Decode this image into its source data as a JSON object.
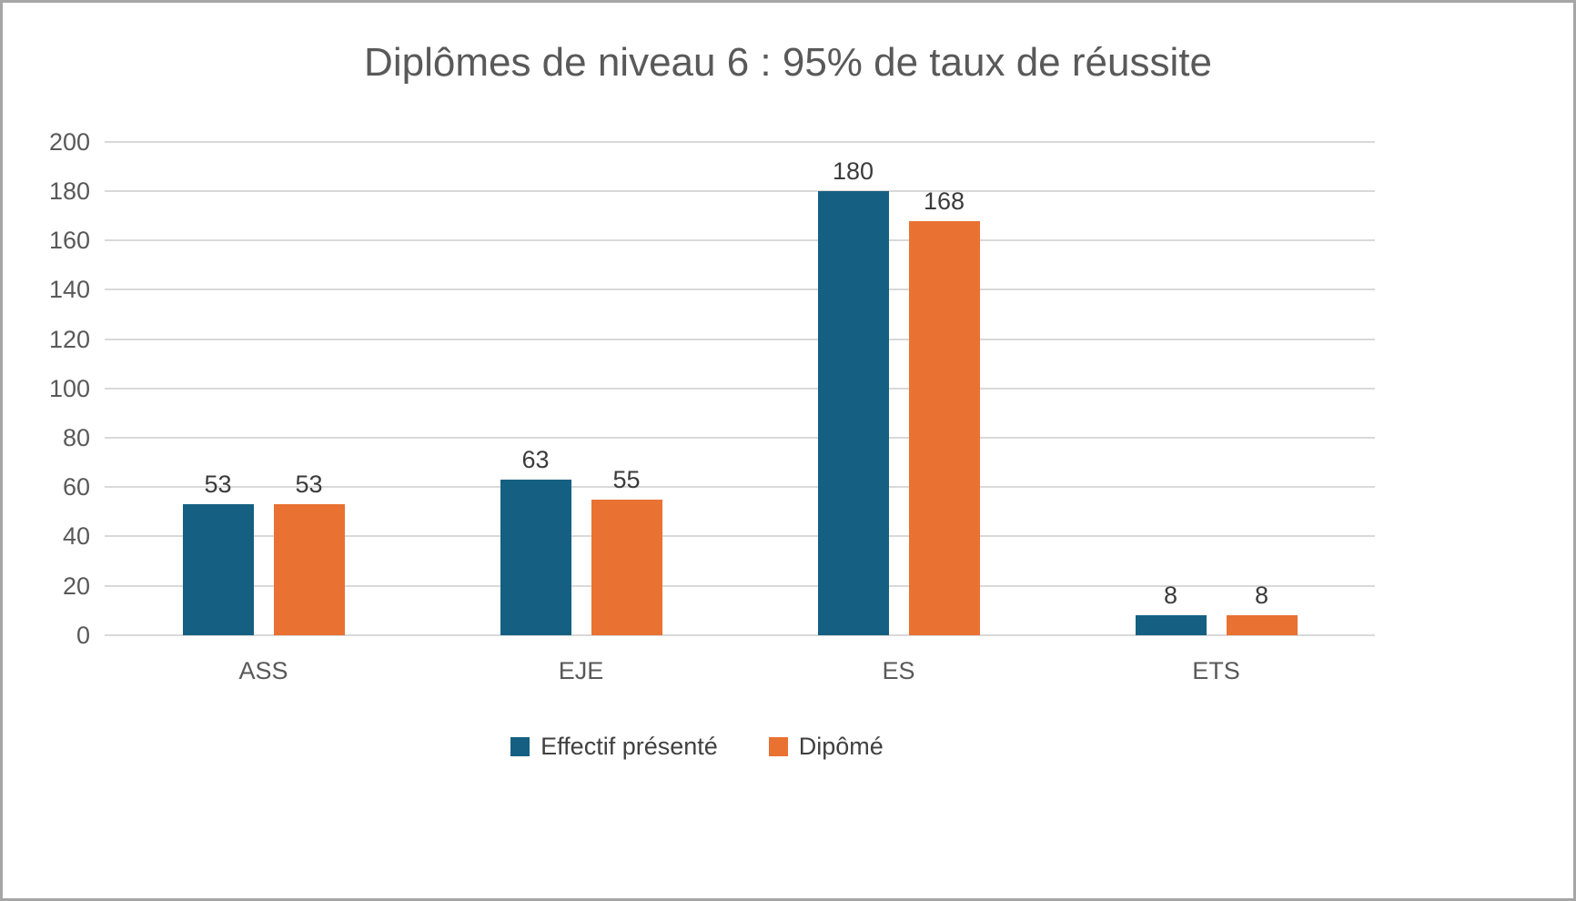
{
  "chart_data": {
    "type": "bar",
    "title": "Diplômes de niveau 6 : 95% de taux de réussite",
    "categories": [
      "ASS",
      "EJE",
      "ES",
      "ETS"
    ],
    "series": [
      {
        "name": "Effectif présenté",
        "color": "#156082",
        "values": [
          53,
          63,
          180,
          8
        ]
      },
      {
        "name": "Dipômé",
        "color": "#E97132",
        "values": [
          53,
          55,
          168,
          8
        ]
      }
    ],
    "ylim": [
      0,
      200
    ],
    "ytick_step": 20,
    "grid": true,
    "legend_position": "bottom",
    "colors": {
      "title": "#595959",
      "axis_text": "#595959",
      "data_label": "#3b3b3b",
      "gridline": "#d9d9d9",
      "frame_border": "#a6a6a6"
    }
  }
}
